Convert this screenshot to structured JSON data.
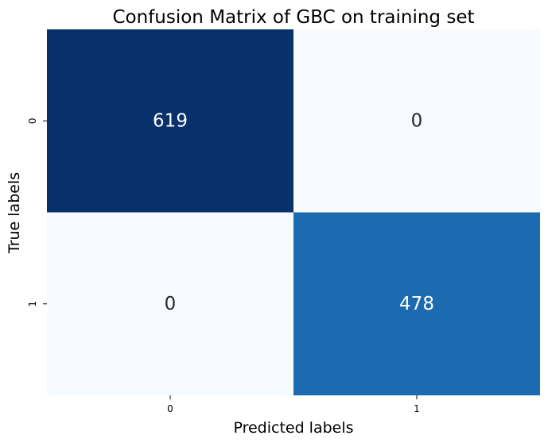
{
  "chart_data": {
    "type": "heatmap",
    "title": "Confusion Matrix of GBC on training set",
    "xlabel": "Predicted labels",
    "ylabel": "True labels",
    "x_categories": [
      "0",
      "1"
    ],
    "y_categories": [
      "0",
      "1"
    ],
    "values": [
      [
        619,
        0
      ],
      [
        0,
        478
      ]
    ],
    "colormap": "Blues",
    "colorbar": false,
    "cell_colors": [
      [
        "#08306b",
        "#f7fbff"
      ],
      [
        "#f7fbff",
        "#1c6ab0"
      ]
    ],
    "cell_text_colors": [
      [
        "#ffffff",
        "#262626"
      ],
      [
        "#262626",
        "#ffffff"
      ]
    ]
  }
}
